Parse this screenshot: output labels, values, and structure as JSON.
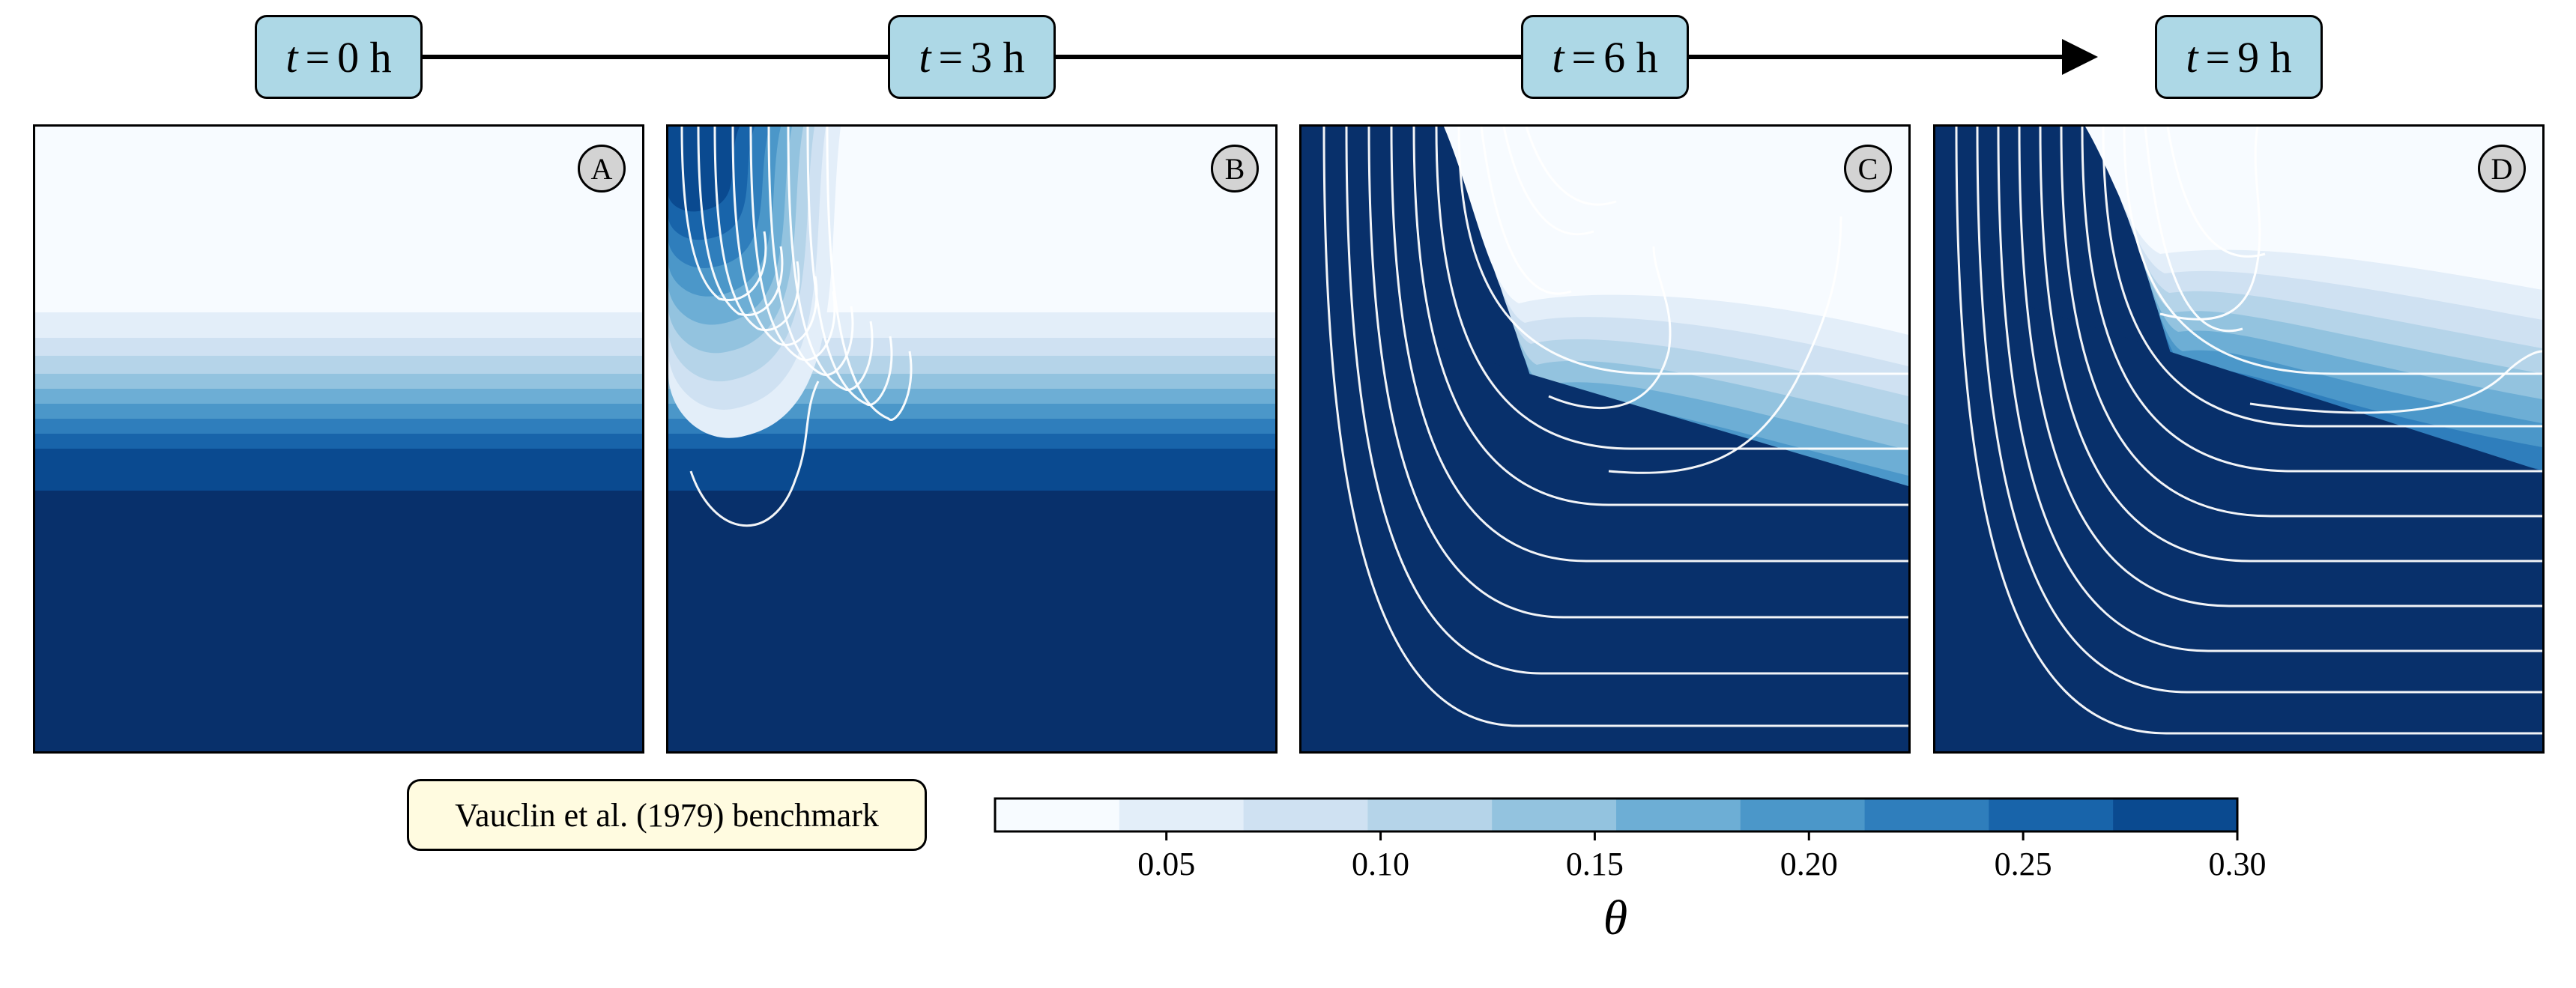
{
  "header": {
    "time_steps": [
      {
        "var": "t",
        "eq": "=",
        "value": "0 h"
      },
      {
        "var": "t",
        "eq": "=",
        "value": "3 h"
      },
      {
        "var": "t",
        "eq": "=",
        "value": "6 h"
      },
      {
        "var": "t",
        "eq": "=",
        "value": "9 h"
      }
    ]
  },
  "benchmark_label": "Vauclin et al. (1979) benchmark",
  "chart_data": {
    "type": "heatmap",
    "variable": "θ",
    "colorbar": {
      "label": "θ",
      "range": [
        0.01,
        0.3
      ],
      "levels": [
        0.01,
        0.039,
        0.068,
        0.097,
        0.126,
        0.155,
        0.184,
        0.213,
        0.242,
        0.271,
        0.3
      ],
      "colors": [
        "#f7fbff",
        "#e3eef9",
        "#cfe1f2",
        "#b5d4e9",
        "#93c3df",
        "#6daed5",
        "#4b97c9",
        "#2f7ebc",
        "#1864aa",
        "#0a4a90",
        "#08306b"
      ],
      "ticks": [
        "0.05",
        "0.10",
        "0.15",
        "0.20",
        "0.25",
        "0.30"
      ],
      "tick_values": [
        0.05,
        0.1,
        0.15,
        0.2,
        0.25,
        0.3
      ]
    },
    "panels": [
      {
        "label": "A",
        "time": "t = 0 h"
      },
      {
        "label": "B",
        "time": "t = 3 h"
      },
      {
        "label": "C",
        "time": "t = 6 h"
      },
      {
        "label": "D",
        "time": "t = 9 h"
      }
    ]
  }
}
